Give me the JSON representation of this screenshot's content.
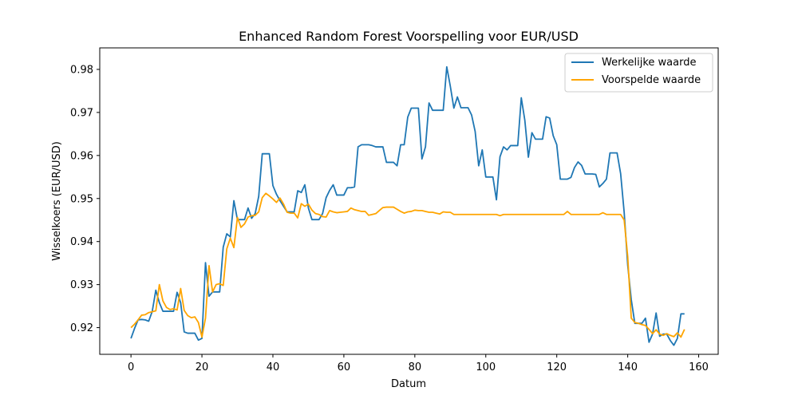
{
  "colors": {
    "actual": "#1f77b4",
    "predicted": "#ffa500",
    "axes": "#000000",
    "background": "#ffffff"
  },
  "chart_data": {
    "type": "line",
    "title": "Enhanced Random Forest Voorspelling voor EUR/USD",
    "xlabel": "Datum",
    "ylabel": "Wisselkoers (EUR/USD)",
    "xlim": [
      -8.8,
      165.5
    ],
    "ylim": [
      0.9138,
      0.985
    ],
    "xticks": [
      0,
      20,
      40,
      60,
      80,
      100,
      120,
      140,
      160
    ],
    "yticks": [
      0.92,
      0.93,
      0.94,
      0.95,
      0.96,
      0.97,
      0.98
    ],
    "ytick_labels": [
      "0.92",
      "0.93",
      "0.94",
      "0.95",
      "0.96",
      "0.97",
      "0.98"
    ],
    "legend_position": "upper right",
    "grid": false,
    "series": [
      {
        "name": "Werkelijke waarde",
        "color": "#1f77b4",
        "points": [
          [
            0,
            0.9175
          ],
          [
            1,
            0.9198
          ],
          [
            2,
            0.9218
          ],
          [
            3,
            0.9219
          ],
          [
            4,
            0.9218
          ],
          [
            5,
            0.9215
          ],
          [
            6,
            0.9238
          ],
          [
            7,
            0.9287
          ],
          [
            8,
            0.9258
          ],
          [
            9,
            0.9238
          ],
          [
            10,
            0.9238
          ],
          [
            11,
            0.9238
          ],
          [
            12,
            0.9238
          ],
          [
            13,
            0.9282
          ],
          [
            14,
            0.9258
          ],
          [
            15,
            0.919
          ],
          [
            16,
            0.9187
          ],
          [
            17,
            0.9187
          ],
          [
            18,
            0.9187
          ],
          [
            19,
            0.9171
          ],
          [
            20,
            0.9175
          ],
          [
            21,
            0.9351
          ],
          [
            22,
            0.9273
          ],
          [
            23,
            0.9283
          ],
          [
            24,
            0.9283
          ],
          [
            25,
            0.9283
          ],
          [
            26,
            0.9387
          ],
          [
            27,
            0.9418
          ],
          [
            28,
            0.9411
          ],
          [
            29,
            0.9495
          ],
          [
            30,
            0.9451
          ],
          [
            31,
            0.9451
          ],
          [
            32,
            0.9451
          ],
          [
            33,
            0.9478
          ],
          [
            34,
            0.9454
          ],
          [
            35,
            0.9465
          ],
          [
            36,
            0.9505
          ],
          [
            37,
            0.9604
          ],
          [
            38,
            0.9604
          ],
          [
            39,
            0.9604
          ],
          [
            40,
            0.953
          ],
          [
            41,
            0.951
          ],
          [
            42,
            0.9495
          ],
          [
            43,
            0.9482
          ],
          [
            44,
            0.9469
          ],
          [
            45,
            0.9469
          ],
          [
            46,
            0.9469
          ],
          [
            47,
            0.9518
          ],
          [
            48,
            0.9514
          ],
          [
            49,
            0.9532
          ],
          [
            50,
            0.9478
          ],
          [
            51,
            0.9451
          ],
          [
            52,
            0.9451
          ],
          [
            53,
            0.9451
          ],
          [
            54,
            0.9465
          ],
          [
            55,
            0.9502
          ],
          [
            56,
            0.9519
          ],
          [
            57,
            0.9532
          ],
          [
            58,
            0.9508
          ],
          [
            59,
            0.9508
          ],
          [
            60,
            0.9508
          ],
          [
            61,
            0.9525
          ],
          [
            62,
            0.9525
          ],
          [
            63,
            0.9527
          ],
          [
            64,
            0.962
          ],
          [
            65,
            0.9625
          ],
          [
            66,
            0.9625
          ],
          [
            67,
            0.9625
          ],
          [
            68,
            0.9623
          ],
          [
            69,
            0.962
          ],
          [
            70,
            0.962
          ],
          [
            71,
            0.962
          ],
          [
            72,
            0.9584
          ],
          [
            73,
            0.9584
          ],
          [
            74,
            0.9584
          ],
          [
            75,
            0.9576
          ],
          [
            76,
            0.9625
          ],
          [
            77,
            0.9625
          ],
          [
            78,
            0.9689
          ],
          [
            79,
            0.971
          ],
          [
            80,
            0.971
          ],
          [
            81,
            0.971
          ],
          [
            82,
            0.9592
          ],
          [
            83,
            0.962
          ],
          [
            84,
            0.9722
          ],
          [
            85,
            0.9705
          ],
          [
            86,
            0.9705
          ],
          [
            87,
            0.9705
          ],
          [
            88,
            0.9705
          ],
          [
            89,
            0.9806
          ],
          [
            90,
            0.9761
          ],
          [
            91,
            0.971
          ],
          [
            92,
            0.9736
          ],
          [
            93,
            0.9711
          ],
          [
            94,
            0.9711
          ],
          [
            95,
            0.9711
          ],
          [
            96,
            0.9694
          ],
          [
            97,
            0.9656
          ],
          [
            98,
            0.9576
          ],
          [
            99,
            0.9613
          ],
          [
            100,
            0.955
          ],
          [
            101,
            0.955
          ],
          [
            102,
            0.955
          ],
          [
            103,
            0.9497
          ],
          [
            104,
            0.9597
          ],
          [
            105,
            0.962
          ],
          [
            106,
            0.9613
          ],
          [
            107,
            0.9623
          ],
          [
            108,
            0.9623
          ],
          [
            109,
            0.9623
          ],
          [
            110,
            0.9734
          ],
          [
            111,
            0.9682
          ],
          [
            112,
            0.9596
          ],
          [
            113,
            0.9653
          ],
          [
            114,
            0.9638
          ],
          [
            115,
            0.9638
          ],
          [
            116,
            0.9638
          ],
          [
            117,
            0.969
          ],
          [
            118,
            0.9687
          ],
          [
            119,
            0.9646
          ],
          [
            120,
            0.9625
          ],
          [
            121,
            0.9545
          ],
          [
            122,
            0.9545
          ],
          [
            123,
            0.9545
          ],
          [
            124,
            0.9549
          ],
          [
            125,
            0.9572
          ],
          [
            126,
            0.9585
          ],
          [
            127,
            0.9577
          ],
          [
            128,
            0.9557
          ],
          [
            129,
            0.9557
          ],
          [
            130,
            0.9557
          ],
          [
            131,
            0.9556
          ],
          [
            132,
            0.9527
          ],
          [
            133,
            0.9535
          ],
          [
            134,
            0.9545
          ],
          [
            135,
            0.9606
          ],
          [
            136,
            0.9606
          ],
          [
            137,
            0.9606
          ],
          [
            138,
            0.9558
          ],
          [
            139,
            0.9468
          ],
          [
            140,
            0.9345
          ],
          [
            141,
            0.9265
          ],
          [
            142,
            0.921
          ],
          [
            143,
            0.921
          ],
          [
            144,
            0.921
          ],
          [
            145,
            0.9222
          ],
          [
            146,
            0.9166
          ],
          [
            147,
            0.9185
          ],
          [
            148,
            0.9234
          ],
          [
            149,
            0.918
          ],
          [
            150,
            0.9185
          ],
          [
            151,
            0.9185
          ],
          [
            152,
            0.917
          ],
          [
            153,
            0.9159
          ],
          [
            154,
            0.9175
          ],
          [
            155,
            0.9232
          ],
          [
            156,
            0.9232
          ]
        ]
      },
      {
        "name": "Voorspelde waarde",
        "color": "#ffa500",
        "points": [
          [
            0,
            0.92
          ],
          [
            1,
            0.9208
          ],
          [
            2,
            0.9218
          ],
          [
            3,
            0.9229
          ],
          [
            4,
            0.923
          ],
          [
            5,
            0.9235
          ],
          [
            6,
            0.9237
          ],
          [
            7,
            0.9239
          ],
          [
            8,
            0.93
          ],
          [
            9,
            0.9262
          ],
          [
            10,
            0.9247
          ],
          [
            11,
            0.9242
          ],
          [
            12,
            0.9244
          ],
          [
            13,
            0.9241
          ],
          [
            14,
            0.9291
          ],
          [
            15,
            0.924
          ],
          [
            16,
            0.9228
          ],
          [
            17,
            0.9223
          ],
          [
            18,
            0.9225
          ],
          [
            19,
            0.9212
          ],
          [
            20,
            0.9178
          ],
          [
            21,
            0.9222
          ],
          [
            22,
            0.9344
          ],
          [
            23,
            0.9283
          ],
          [
            24,
            0.93
          ],
          [
            25,
            0.9302
          ],
          [
            26,
            0.9298
          ],
          [
            27,
            0.9383
          ],
          [
            28,
            0.9408
          ],
          [
            29,
            0.9386
          ],
          [
            30,
            0.9456
          ],
          [
            31,
            0.9433
          ],
          [
            32,
            0.9441
          ],
          [
            33,
            0.9457
          ],
          [
            34,
            0.946
          ],
          [
            35,
            0.9461
          ],
          [
            36,
            0.9469
          ],
          [
            37,
            0.9502
          ],
          [
            38,
            0.9512
          ],
          [
            39,
            0.9506
          ],
          [
            40,
            0.9499
          ],
          [
            41,
            0.9491
          ],
          [
            42,
            0.9501
          ],
          [
            43,
            0.9487
          ],
          [
            44,
            0.9468
          ],
          [
            45,
            0.9466
          ],
          [
            46,
            0.9466
          ],
          [
            47,
            0.9455
          ],
          [
            48,
            0.9488
          ],
          [
            49,
            0.9482
          ],
          [
            50,
            0.9487
          ],
          [
            51,
            0.9473
          ],
          [
            52,
            0.9465
          ],
          [
            53,
            0.9463
          ],
          [
            54,
            0.9458
          ],
          [
            55,
            0.9457
          ],
          [
            56,
            0.9472
          ],
          [
            57,
            0.9469
          ],
          [
            58,
            0.9467
          ],
          [
            59,
            0.9468
          ],
          [
            60,
            0.9469
          ],
          [
            61,
            0.947
          ],
          [
            62,
            0.9478
          ],
          [
            63,
            0.9474
          ],
          [
            64,
            0.9472
          ],
          [
            65,
            0.947
          ],
          [
            66,
            0.947
          ],
          [
            67,
            0.9461
          ],
          [
            68,
            0.9463
          ],
          [
            69,
            0.9465
          ],
          [
            70,
            0.9472
          ],
          [
            71,
            0.9479
          ],
          [
            72,
            0.948
          ],
          [
            73,
            0.948
          ],
          [
            74,
            0.948
          ],
          [
            75,
            0.9475
          ],
          [
            76,
            0.947
          ],
          [
            77,
            0.9466
          ],
          [
            78,
            0.9469
          ],
          [
            79,
            0.947
          ],
          [
            80,
            0.9473
          ],
          [
            81,
            0.9472
          ],
          [
            82,
            0.9472
          ],
          [
            83,
            0.947
          ],
          [
            84,
            0.9468
          ],
          [
            85,
            0.9468
          ],
          [
            86,
            0.9466
          ],
          [
            87,
            0.9464
          ],
          [
            88,
            0.9469
          ],
          [
            89,
            0.9468
          ],
          [
            90,
            0.9468
          ],
          [
            91,
            0.9463
          ],
          [
            92,
            0.9463
          ],
          [
            93,
            0.9463
          ],
          [
            94,
            0.9463
          ],
          [
            95,
            0.9463
          ],
          [
            96,
            0.9463
          ],
          [
            97,
            0.9463
          ],
          [
            98,
            0.9463
          ],
          [
            99,
            0.9463
          ],
          [
            100,
            0.9463
          ],
          [
            101,
            0.9463
          ],
          [
            102,
            0.9463
          ],
          [
            103,
            0.9463
          ],
          [
            104,
            0.946
          ],
          [
            105,
            0.9463
          ],
          [
            106,
            0.9463
          ],
          [
            107,
            0.9463
          ],
          [
            108,
            0.9463
          ],
          [
            109,
            0.9463
          ],
          [
            110,
            0.9463
          ],
          [
            111,
            0.9463
          ],
          [
            112,
            0.9463
          ],
          [
            113,
            0.9463
          ],
          [
            114,
            0.9463
          ],
          [
            115,
            0.9463
          ],
          [
            116,
            0.9463
          ],
          [
            117,
            0.9463
          ],
          [
            118,
            0.9463
          ],
          [
            119,
            0.9463
          ],
          [
            120,
            0.9463
          ],
          [
            121,
            0.9463
          ],
          [
            122,
            0.9463
          ],
          [
            123,
            0.947
          ],
          [
            124,
            0.9463
          ],
          [
            125,
            0.9463
          ],
          [
            126,
            0.9463
          ],
          [
            127,
            0.9463
          ],
          [
            128,
            0.9463
          ],
          [
            129,
            0.9463
          ],
          [
            130,
            0.9463
          ],
          [
            131,
            0.9463
          ],
          [
            132,
            0.9463
          ],
          [
            133,
            0.9467
          ],
          [
            134,
            0.9463
          ],
          [
            135,
            0.9463
          ],
          [
            136,
            0.9463
          ],
          [
            137,
            0.9463
          ],
          [
            138,
            0.9463
          ],
          [
            139,
            0.945
          ],
          [
            140,
            0.9365
          ],
          [
            141,
            0.9222
          ],
          [
            142,
            0.9212
          ],
          [
            143,
            0.921
          ],
          [
            144,
            0.9207
          ],
          [
            145,
            0.9205
          ],
          [
            146,
            0.9196
          ],
          [
            147,
            0.9186
          ],
          [
            148,
            0.9195
          ],
          [
            149,
            0.9185
          ],
          [
            150,
            0.9182
          ],
          [
            151,
            0.9186
          ],
          [
            152,
            0.9182
          ],
          [
            153,
            0.9179
          ],
          [
            154,
            0.9188
          ],
          [
            155,
            0.9178
          ],
          [
            156,
            0.9196
          ]
        ]
      }
    ]
  }
}
